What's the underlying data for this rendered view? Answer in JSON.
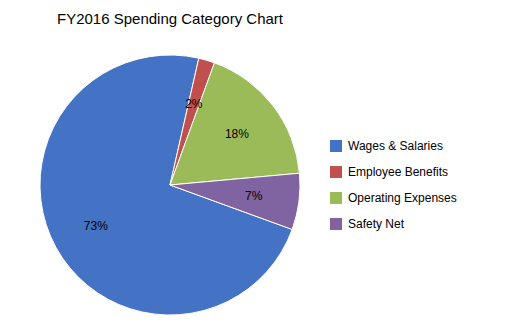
{
  "chart_data": {
    "type": "pie",
    "title": "FY2016 Spending Category Chart",
    "categories": [
      "Wages & Salaries",
      "Employee Benefits",
      "Operating Expenses",
      "Safety Net"
    ],
    "values": [
      73,
      2,
      18,
      7
    ],
    "value_labels": [
      "73%",
      "2%",
      "18%",
      "7%"
    ],
    "colors": [
      "#4472C4",
      "#C0504D",
      "#9BBB59",
      "#8064A2"
    ],
    "data_labels": true,
    "legend": "right"
  }
}
